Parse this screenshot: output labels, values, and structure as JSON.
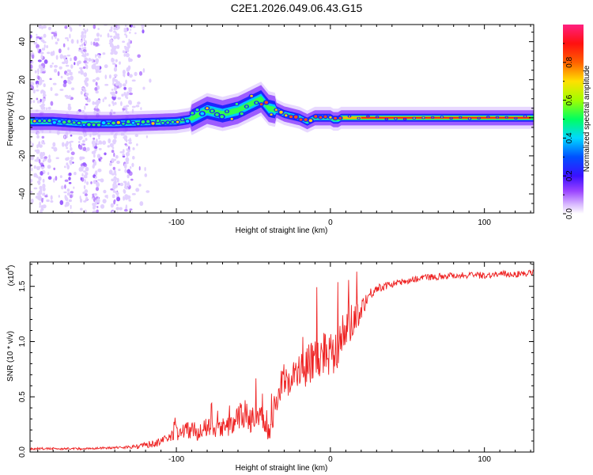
{
  "title": "C2E1.2026.049.06.43.G15",
  "chart_data": [
    {
      "type": "heatmap",
      "title": "C2E1.2026.049.06.43.G15",
      "xlabel": "Height of straight line (km)",
      "ylabel": "Frequency (Hz)",
      "xlim": [
        -195,
        132
      ],
      "ylim": [
        -50,
        49
      ],
      "xticks": [
        -100,
        0,
        100
      ],
      "yticks": [
        -40,
        -20,
        0,
        20,
        40
      ],
      "xtick_labels": [
        "-100",
        "0",
        "100"
      ],
      "ytick_labels": [
        "-40",
        "-20",
        "0",
        "20",
        "40"
      ],
      "colorbar": {
        "label": "Normalized spectral amplitude",
        "range": [
          0,
          1
        ],
        "ticks": [
          0.0,
          0.2,
          0.4,
          0.6,
          0.8
        ],
        "tick_labels": [
          "0.0",
          "0.2",
          "0.4",
          "0.6",
          "0.8"
        ],
        "colors": [
          "#ffffff",
          "#c8a0ff",
          "#7a2cff",
          "#1a10ff",
          "#00d8ff",
          "#00ff40",
          "#d0ff00",
          "#ffd000",
          "#ff3000",
          "#ff2070"
        ]
      },
      "signal_trace": [
        [
          -195,
          -2
        ],
        [
          -180,
          -2
        ],
        [
          -160,
          -3
        ],
        [
          -140,
          -3
        ],
        [
          -120,
          -2.5
        ],
        [
          -100,
          -2
        ],
        [
          -92,
          -1
        ],
        [
          -80,
          4
        ],
        [
          -70,
          2
        ],
        [
          -60,
          4
        ],
        [
          -55,
          6
        ],
        [
          -50,
          8
        ],
        [
          -45,
          10
        ],
        [
          -40,
          5
        ],
        [
          -35,
          4
        ],
        [
          -30,
          2
        ],
        [
          -25,
          1
        ],
        [
          -20,
          0
        ],
        [
          -15,
          -2
        ],
        [
          -10,
          0
        ],
        [
          -5,
          0
        ],
        [
          0,
          0
        ],
        [
          2,
          -1
        ],
        [
          5,
          -1
        ],
        [
          7,
          0
        ],
        [
          20,
          0
        ],
        [
          60,
          0
        ],
        [
          100,
          0
        ],
        [
          132,
          0
        ]
      ]
    },
    {
      "type": "line",
      "title": "",
      "xlabel": "Height of straight line (km)",
      "ylabel": "SNR (10 * v/v)",
      "y_multiplier": "(x10",
      "y_multiplier_exp": "4",
      "xlim": [
        -195,
        132
      ],
      "ylim": [
        0,
        1.72
      ],
      "xticks": [
        -100,
        0,
        100
      ],
      "yticks": [
        0.0,
        0.5,
        1.0,
        1.5
      ],
      "xtick_labels": [
        "-100",
        "0",
        "100"
      ],
      "ytick_labels": [
        "0.0",
        "0.5",
        "1.0",
        "1.5"
      ],
      "line_color": "#ee2222",
      "series": [
        {
          "name": "SNR",
          "x": [
            -195,
            -180,
            -160,
            -140,
            -125,
            -110,
            -105,
            -100,
            -95,
            -90,
            -85,
            -80,
            -75,
            -70,
            -65,
            -60,
            -55,
            -50,
            -45,
            -40,
            -35,
            -30,
            -25,
            -20,
            -15,
            -10,
            -5,
            0,
            5,
            10,
            15,
            20,
            25,
            30,
            40,
            50,
            60,
            70,
            80,
            90,
            100,
            110,
            120,
            132
          ],
          "values": [
            0.03,
            0.03,
            0.03,
            0.04,
            0.05,
            0.09,
            0.12,
            0.18,
            0.2,
            0.2,
            0.18,
            0.22,
            0.2,
            0.22,
            0.24,
            0.3,
            0.35,
            0.28,
            0.3,
            0.12,
            0.5,
            0.65,
            0.68,
            0.72,
            0.78,
            0.85,
            0.9,
            0.92,
            0.98,
            1.1,
            1.2,
            1.3,
            1.42,
            1.48,
            1.52,
            1.55,
            1.58,
            1.59,
            1.6,
            1.6,
            1.6,
            1.61,
            1.61,
            1.62
          ],
          "noise": [
            0.01,
            0.01,
            0.01,
            0.01,
            0.02,
            0.04,
            0.06,
            0.09,
            0.08,
            0.08,
            0.08,
            0.09,
            0.08,
            0.09,
            0.09,
            0.13,
            0.14,
            0.12,
            0.12,
            0.06,
            0.14,
            0.16,
            0.16,
            0.17,
            0.18,
            0.2,
            0.22,
            0.24,
            0.22,
            0.2,
            0.16,
            0.1,
            0.06,
            0.04,
            0.03,
            0.03,
            0.03,
            0.03,
            0.03,
            0.03,
            0.03,
            0.03,
            0.03,
            0.03
          ]
        }
      ]
    }
  ]
}
